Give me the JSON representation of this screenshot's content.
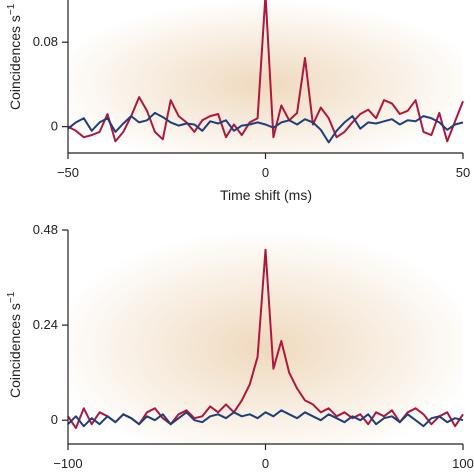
{
  "colors": {
    "series_red": "#b0173f",
    "series_blue": "#1f3f7a",
    "background_center": "#efd9bd",
    "background_edge": "#ffffff"
  },
  "chart_data": [
    {
      "type": "line",
      "xlabel": "Time shift (ms)",
      "ylabel": "Coincidences s",
      "ylabel_superscript": "−1",
      "xlim": [
        -50,
        50
      ],
      "ylim": [
        -0.025,
        0.12
      ],
      "xticks": [
        -50,
        0,
        50
      ],
      "xtick_labels": [
        "−50",
        "0",
        "50"
      ],
      "yticks": [
        0,
        0.08
      ],
      "ytick_labels": [
        "0",
        "0.08"
      ],
      "series": [
        {
          "color": "#b0173f",
          "x": [
            -50,
            -48,
            -46,
            -44,
            -42,
            -40,
            -38,
            -36,
            -34,
            -32,
            -30,
            -28,
            -26,
            -24,
            -22,
            -20,
            -18,
            -16,
            -14,
            -12,
            -10,
            -8,
            -6,
            -4,
            -2,
            0,
            2,
            4,
            6,
            8,
            10,
            12,
            14,
            16,
            18,
            20,
            22,
            24,
            26,
            28,
            30,
            32,
            34,
            36,
            38,
            40,
            42,
            44,
            46,
            48,
            50
          ],
          "y": [
            0,
            -0.004,
            -0.01,
            -0.008,
            -0.005,
            0.012,
            -0.014,
            -0.005,
            0.01,
            0.028,
            0.015,
            -0.005,
            -0.012,
            0.025,
            0.01,
            0.004,
            -0.005,
            0.006,
            0.01,
            0.012,
            -0.01,
            0.002,
            -0.008,
            0.004,
            0.008,
            0.125,
            -0.01,
            0.02,
            0.006,
            0.013,
            0.065,
            0.002,
            0.018,
            0.008,
            -0.01,
            -0.005,
            0.004,
            0.012,
            0.016,
            0.008,
            0.025,
            0.022,
            0.012,
            0.015,
            0.025,
            -0.005,
            -0.008,
            0.013,
            -0.014,
            0.005,
            0.024
          ]
        },
        {
          "color": "#1f3f7a",
          "x": [
            -50,
            -48,
            -46,
            -44,
            -42,
            -40,
            -38,
            -36,
            -34,
            -32,
            -30,
            -28,
            -26,
            -24,
            -22,
            -20,
            -18,
            -16,
            -14,
            -12,
            -10,
            -8,
            -6,
            -4,
            -2,
            0,
            2,
            4,
            6,
            8,
            10,
            12,
            14,
            16,
            18,
            20,
            22,
            24,
            26,
            28,
            30,
            32,
            34,
            36,
            38,
            40,
            42,
            44,
            46,
            48,
            50
          ],
          "y": [
            -0.002,
            0.004,
            0.008,
            -0.004,
            0.004,
            0.008,
            -0.005,
            0.003,
            0.01,
            0.004,
            0.006,
            0.013,
            0.009,
            0.004,
            0.001,
            0.003,
            0.002,
            -0.004,
            0.005,
            0.003,
            0.006,
            -0.004,
            0.001,
            0.002,
            0.004,
            0.002,
            -0.001,
            0.004,
            0.006,
            0.002,
            0.007,
            0.004,
            -0.003,
            -0.015,
            -0.004,
            0.004,
            0.01,
            -0.002,
            0.004,
            0.003,
            0.005,
            0.007,
            0.002,
            0.006,
            0.005,
            0.01,
            0.008,
            0.004,
            -0.003,
            0.002,
            0.004
          ]
        }
      ]
    },
    {
      "type": "line",
      "xlabel": "",
      "ylabel": "Coincidences s",
      "ylabel_superscript": "−1",
      "xlim": [
        -100,
        100
      ],
      "ylim": [
        -0.06,
        0.48
      ],
      "xticks": [
        -100,
        0,
        100
      ],
      "xtick_labels": [
        "−100",
        "0",
        "100"
      ],
      "yticks": [
        0,
        0.24,
        0.48
      ],
      "ytick_labels": [
        "0",
        "0.24",
        "0.48"
      ],
      "series": [
        {
          "color": "#b0173f",
          "x": [
            -100,
            -96,
            -92,
            -88,
            -84,
            -80,
            -76,
            -72,
            -68,
            -64,
            -60,
            -56,
            -52,
            -48,
            -44,
            -40,
            -36,
            -32,
            -28,
            -24,
            -20,
            -16,
            -12,
            -8,
            -4,
            0,
            4,
            8,
            12,
            16,
            20,
            24,
            28,
            32,
            36,
            40,
            44,
            48,
            52,
            56,
            60,
            64,
            68,
            72,
            76,
            80,
            84,
            88,
            92,
            96,
            100
          ],
          "y": [
            0.01,
            -0.02,
            0.03,
            -0.01,
            0.02,
            0.01,
            -0.005,
            0.015,
            0.005,
            -0.01,
            0.02,
            0.03,
            0.005,
            -0.01,
            0.015,
            0.025,
            0.005,
            0.01,
            0.035,
            0.02,
            0.04,
            0.02,
            0.05,
            0.09,
            0.16,
            0.43,
            0.13,
            0.2,
            0.12,
            0.08,
            0.05,
            0.04,
            0.02,
            0.03,
            0.01,
            0.02,
            0.005,
            0.015,
            -0.01,
            0.02,
            0.01,
            0.025,
            -0.005,
            0.02,
            0.03,
            0.015,
            -0.01,
            0.01,
            0.02,
            -0.015,
            0.015
          ]
        },
        {
          "color": "#1f3f7a",
          "x": [
            -100,
            -96,
            -92,
            -88,
            -84,
            -80,
            -76,
            -72,
            -68,
            -64,
            -60,
            -56,
            -52,
            -48,
            -44,
            -40,
            -36,
            -32,
            -28,
            -24,
            -20,
            -16,
            -12,
            -8,
            -4,
            0,
            4,
            8,
            12,
            16,
            20,
            24,
            28,
            32,
            36,
            40,
            44,
            48,
            52,
            56,
            60,
            64,
            68,
            72,
            76,
            80,
            84,
            88,
            92,
            96,
            100
          ],
          "y": [
            -0.01,
            0.01,
            -0.015,
            0.005,
            -0.01,
            0.01,
            -0.005,
            0.015,
            0.005,
            -0.01,
            0.01,
            0.0,
            0.015,
            -0.01,
            0.005,
            0.02,
            0.0,
            -0.005,
            0.01,
            0.015,
            0.005,
            0.02,
            0.01,
            0.015,
            0.005,
            0.02,
            0.01,
            0.025,
            0.015,
            0.005,
            0.02,
            0.01,
            0.0,
            0.015,
            0.005,
            -0.005,
            0.01,
            0.0,
            0.015,
            -0.01,
            0.005,
            0.01,
            -0.005,
            0.015,
            0.0,
            -0.015,
            0.005,
            0.01,
            -0.005,
            0.005,
            0.0
          ]
        }
      ]
    }
  ]
}
